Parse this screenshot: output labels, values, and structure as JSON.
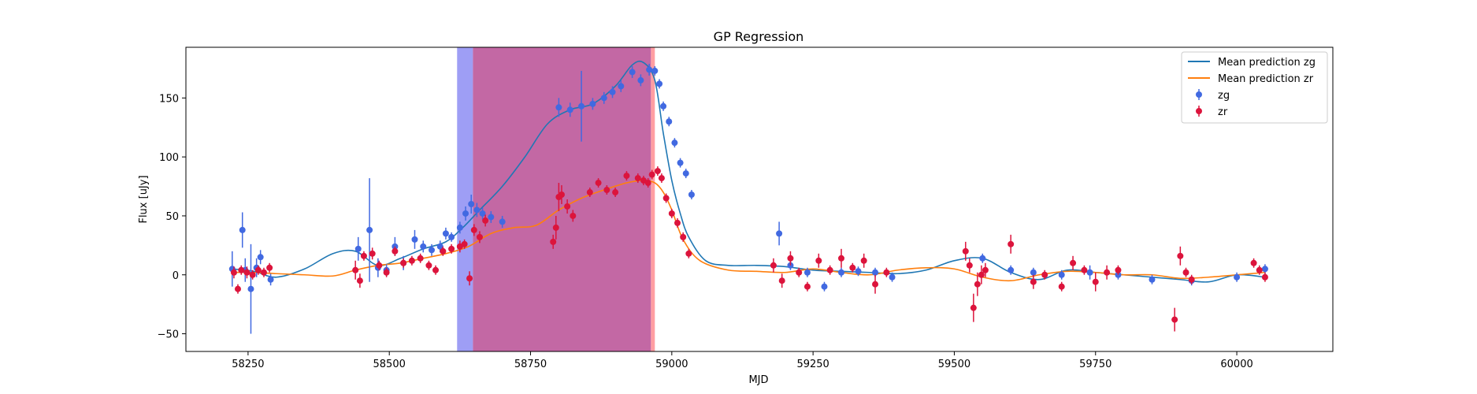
{
  "chart_data": {
    "type": "scatter",
    "title": "GP Regression",
    "xlabel": "MJD",
    "ylabel": "Flux [uJy]",
    "xlim": [
      58140,
      60170
    ],
    "ylim": [
      -65,
      193
    ],
    "xticks": [
      58250,
      58500,
      58750,
      59000,
      59250,
      59500,
      59750,
      60000
    ],
    "yticks": [
      -50,
      0,
      50,
      100,
      150
    ],
    "grid": false,
    "legend_position": "top-right",
    "colors": {
      "zg_line": "#1f77b4",
      "zr_line": "#ff7f0e",
      "zg_points": "#4169e1",
      "zr_points": "#dc143c",
      "span_blue": "#6a6af0",
      "span_red": "#ff6a70",
      "span_overlap": "#b84e94"
    },
    "shaded_regions": [
      {
        "band": "zg",
        "x": [
          58620,
          58963
        ]
      },
      {
        "band": "zr",
        "x": [
          58648,
          58970
        ]
      }
    ],
    "series": [
      {
        "name": "Mean prediction zg",
        "kind": "line",
        "x": [
          58220,
          58260,
          58300,
          58350,
          58400,
          58440,
          58480,
          58520,
          58560,
          58600,
          58630,
          58660,
          58700,
          58740,
          58780,
          58820,
          58860,
          58900,
          58930,
          58950,
          58970,
          58985,
          59000,
          59015,
          59030,
          59060,
          59100,
          59150,
          59200,
          59250,
          59300,
          59350,
          59400,
          59450,
          59500,
          59550,
          59600,
          59650,
          59700,
          59750,
          59800,
          59850,
          59900,
          59950,
          60000,
          60050
        ],
        "y": [
          5,
          3,
          -2,
          5,
          18,
          20,
          8,
          14,
          22,
          28,
          40,
          55,
          75,
          100,
          128,
          140,
          145,
          160,
          178,
          180,
          165,
          120,
          80,
          52,
          32,
          12,
          8,
          8,
          7,
          4,
          3,
          2,
          1,
          4,
          12,
          14,
          2,
          -4,
          4,
          2,
          0,
          -2,
          -4,
          -6,
          0,
          -2
        ]
      },
      {
        "name": "Mean prediction zr",
        "kind": "line",
        "x": [
          58220,
          58260,
          58300,
          58350,
          58400,
          58440,
          58480,
          58520,
          58560,
          58600,
          58640,
          58680,
          58720,
          58760,
          58800,
          58840,
          58880,
          58920,
          58950,
          58970,
          58985,
          59000,
          59020,
          59050,
          59100,
          59150,
          59200,
          59250,
          59300,
          59350,
          59400,
          59450,
          59500,
          59550,
          59600,
          59650,
          59700,
          59750,
          59800,
          59850,
          59900,
          59950,
          60000,
          60050
        ],
        "y": [
          2,
          2,
          1,
          0,
          -1,
          4,
          8,
          10,
          14,
          18,
          24,
          35,
          40,
          42,
          55,
          65,
          72,
          78,
          80,
          78,
          70,
          55,
          30,
          12,
          4,
          3,
          2,
          5,
          2,
          0,
          4,
          6,
          5,
          -2,
          -5,
          0,
          3,
          2,
          0,
          0,
          -3,
          -2,
          0,
          2
        ]
      },
      {
        "name": "zg",
        "kind": "errorbar",
        "x": [
          58222,
          58240,
          58245,
          58255,
          58265,
          58272,
          58290,
          58445,
          58465,
          58480,
          58495,
          58510,
          58525,
          58545,
          58560,
          58575,
          58590,
          58600,
          58610,
          58625,
          58635,
          58645,
          58655,
          58665,
          58680,
          58700,
          58800,
          58820,
          58840,
          58860,
          58880,
          58895,
          58910,
          58930,
          58945,
          58960,
          58970,
          58978,
          58985,
          58995,
          59005,
          59015,
          59025,
          59035,
          59190,
          59210,
          59240,
          59270,
          59300,
          59330,
          59360,
          59390,
          59550,
          59600,
          59640,
          59690,
          59740,
          59790,
          59850,
          59920,
          60000,
          60050
        ],
        "y": [
          5,
          38,
          4,
          -12,
          6,
          15,
          -4,
          22,
          38,
          6,
          4,
          24,
          10,
          30,
          24,
          21,
          24,
          35,
          32,
          40,
          52,
          60,
          55,
          52,
          49,
          45,
          142,
          140,
          143,
          145,
          150,
          155,
          160,
          172,
          165,
          174,
          173,
          162,
          143,
          130,
          112,
          95,
          86,
          68,
          35,
          8,
          2,
          -10,
          2,
          3,
          2,
          -2,
          14,
          4,
          2,
          0,
          2,
          0,
          -4,
          -5,
          -2,
          5
        ],
        "yerr": [
          15,
          15,
          10,
          38,
          8,
          6,
          5,
          10,
          44,
          8,
          5,
          8,
          6,
          8,
          5,
          5,
          5,
          5,
          4,
          5,
          6,
          8,
          6,
          5,
          5,
          5,
          8,
          6,
          30,
          5,
          5,
          5,
          5,
          5,
          5,
          5,
          4,
          4,
          4,
          4,
          4,
          4,
          4,
          4,
          10,
          4,
          4,
          4,
          4,
          4,
          4,
          4,
          4,
          4,
          4,
          4,
          6,
          4,
          4,
          4,
          4,
          4
        ]
      },
      {
        "name": "zr",
        "kind": "errorbar",
        "x": [
          58225,
          58232,
          58238,
          58248,
          58258,
          58268,
          58278,
          58288,
          58440,
          58448,
          58455,
          58470,
          58482,
          58495,
          58510,
          58525,
          58540,
          58555,
          58570,
          58582,
          58595,
          58610,
          58625,
          58633,
          58642,
          58650,
          58660,
          58670,
          58790,
          58795,
          58800,
          58805,
          58815,
          58825,
          58855,
          58870,
          58885,
          58900,
          58920,
          58940,
          58950,
          58958,
          58965,
          58975,
          58982,
          58990,
          59000,
          59010,
          59020,
          59030,
          59180,
          59195,
          59210,
          59225,
          59240,
          59260,
          59280,
          59300,
          59320,
          59340,
          59360,
          59380,
          59520,
          59527,
          59534,
          59541,
          59548,
          59555,
          59600,
          59640,
          59660,
          59690,
          59710,
          59730,
          59750,
          59770,
          59790,
          59890,
          59900,
          59910,
          59920,
          60030,
          60040,
          60050
        ],
        "y": [
          2,
          -12,
          4,
          2,
          0,
          4,
          2,
          6,
          4,
          -5,
          16,
          18,
          8,
          2,
          20,
          10,
          12,
          14,
          8,
          4,
          20,
          22,
          24,
          26,
          -3,
          38,
          32,
          46,
          28,
          40,
          66,
          68,
          58,
          50,
          70,
          78,
          72,
          70,
          84,
          82,
          80,
          78,
          85,
          88,
          82,
          65,
          52,
          44,
          32,
          18,
          8,
          -5,
          14,
          2,
          -10,
          12,
          4,
          14,
          6,
          12,
          -8,
          2,
          20,
          8,
          -28,
          -8,
          0,
          4,
          26,
          -6,
          0,
          -10,
          10,
          4,
          -6,
          2,
          4,
          -38,
          16,
          2,
          -4,
          10,
          4,
          -2
        ],
        "yerr": [
          5,
          4,
          4,
          5,
          4,
          4,
          4,
          4,
          8,
          6,
          4,
          5,
          4,
          4,
          4,
          4,
          4,
          4,
          4,
          4,
          4,
          4,
          5,
          4,
          6,
          5,
          5,
          5,
          6,
          10,
          12,
          8,
          6,
          5,
          4,
          4,
          4,
          4,
          4,
          4,
          4,
          4,
          4,
          4,
          4,
          4,
          4,
          4,
          4,
          4,
          6,
          6,
          6,
          4,
          4,
          6,
          4,
          8,
          4,
          6,
          8,
          4,
          8,
          6,
          12,
          10,
          8,
          6,
          8,
          6,
          4,
          4,
          6,
          4,
          8,
          6,
          4,
          10,
          8,
          4,
          4,
          4,
          4,
          4
        ]
      }
    ]
  }
}
